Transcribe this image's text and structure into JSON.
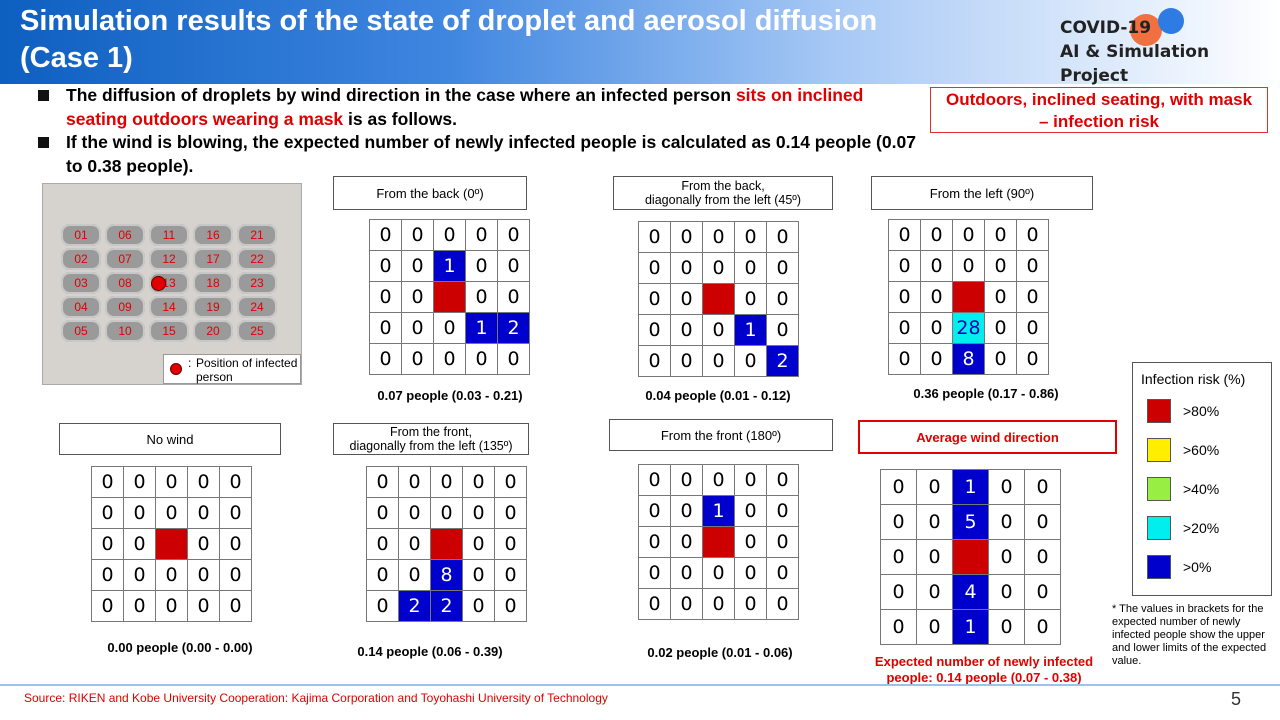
{
  "header": {
    "title_line1": "Simulation results of the state of droplet and aerosol diffusion",
    "title_line2": "(Case 1)",
    "logo_line1": "COVID-19",
    "logo_line2": "AI & Simulation Project"
  },
  "bullets": {
    "b1_part1": "The diffusion of droplets by wind direction in the case where an infected person ",
    "b1_red": "sits on inclined seating outdoors wearing a mask",
    "b1_part2": " is as follows.",
    "b2": "If the wind is blowing, the expected number of newly infected people is calculated as 0.14 people (0.07 to 0.38 people)."
  },
  "risk_box": {
    "line1": "Outdoors, inclined seating, with mask",
    "line2": "– infection risk"
  },
  "seat_labels": [
    [
      "01",
      "06",
      "11",
      "16",
      "21"
    ],
    [
      "02",
      "07",
      "12",
      "17",
      "22"
    ],
    [
      "03",
      "08",
      "13",
      "18",
      "23"
    ],
    [
      "04",
      "09",
      "14",
      "19",
      "24"
    ],
    [
      "05",
      "10",
      "15",
      "20",
      "25"
    ]
  ],
  "infected_legend": {
    "colon": ":",
    "text": "Position of infected person"
  },
  "panels": {
    "back": {
      "label": "From the back (0º)",
      "caption": "0.07 people (0.03 - 0.21)"
    },
    "back45": {
      "label_line1": "From the back,",
      "label_line2": "diagonally from the left (45º)",
      "caption": "0.04 people (0.01 - 0.12)"
    },
    "left90": {
      "label": "From the left (90º)",
      "caption": "0.36 people (0.17 - 0.86)"
    },
    "nowind": {
      "label": "No wind",
      "caption": "0.00 people (0.00 - 0.00)"
    },
    "front135": {
      "label_line1": "From the front,",
      "label_line2": "diagonally from the left (135º)",
      "caption": "0.14 people (0.06 - 0.39)"
    },
    "front180": {
      "label": "From the front (180º)",
      "caption": "0.02 people (0.01 - 0.06)"
    },
    "average": {
      "label": "Average wind direction",
      "caption_line1": "Expected number of newly infected",
      "caption_line2": "people: 0.14 people (0.07 - 0.38)"
    }
  },
  "grids": {
    "back": [
      [
        "0",
        "0",
        "0",
        "0",
        "0"
      ],
      [
        "0",
        "0",
        "1",
        "0",
        "0"
      ],
      [
        "0",
        "0",
        "",
        "0",
        "0"
      ],
      [
        "0",
        "0",
        "0",
        "1",
        "2"
      ],
      [
        "0",
        "0",
        "0",
        "0",
        "0"
      ]
    ],
    "back45": [
      [
        "0",
        "0",
        "0",
        "0",
        "0"
      ],
      [
        "0",
        "0",
        "0",
        "0",
        "0"
      ],
      [
        "0",
        "0",
        "",
        "0",
        "0"
      ],
      [
        "0",
        "0",
        "0",
        "1",
        "0"
      ],
      [
        "0",
        "0",
        "0",
        "0",
        "2"
      ]
    ],
    "left90": [
      [
        "0",
        "0",
        "0",
        "0",
        "0"
      ],
      [
        "0",
        "0",
        "0",
        "0",
        "0"
      ],
      [
        "0",
        "0",
        "",
        "0",
        "0"
      ],
      [
        "0",
        "0",
        "28",
        "0",
        "0"
      ],
      [
        "0",
        "0",
        "8",
        "0",
        "0"
      ]
    ],
    "nowind": [
      [
        "0",
        "0",
        "0",
        "0",
        "0"
      ],
      [
        "0",
        "0",
        "0",
        "0",
        "0"
      ],
      [
        "0",
        "0",
        "",
        "0",
        "0"
      ],
      [
        "0",
        "0",
        "0",
        "0",
        "0"
      ],
      [
        "0",
        "0",
        "0",
        "0",
        "0"
      ]
    ],
    "front135": [
      [
        "0",
        "0",
        "0",
        "0",
        "0"
      ],
      [
        "0",
        "0",
        "0",
        "0",
        "0"
      ],
      [
        "0",
        "0",
        "",
        "0",
        "0"
      ],
      [
        "0",
        "0",
        "8",
        "0",
        "0"
      ],
      [
        "0",
        "2",
        "2",
        "0",
        "0"
      ]
    ],
    "front180": [
      [
        "0",
        "0",
        "0",
        "0",
        "0"
      ],
      [
        "0",
        "0",
        "1",
        "0",
        "0"
      ],
      [
        "0",
        "0",
        "",
        "0",
        "0"
      ],
      [
        "0",
        "0",
        "0",
        "0",
        "0"
      ],
      [
        "0",
        "0",
        "0",
        "0",
        "0"
      ]
    ],
    "average": [
      [
        "0",
        "0",
        "1",
        "0",
        "0"
      ],
      [
        "0",
        "0",
        "5",
        "0",
        "0"
      ],
      [
        "0",
        "0",
        "",
        "0",
        "0"
      ],
      [
        "0",
        "0",
        "4",
        "0",
        "0"
      ],
      [
        "0",
        "0",
        "1",
        "0",
        "0"
      ]
    ]
  },
  "risk_legend": {
    "title": "Infection risk (%)",
    "items": [
      {
        "label": ">80%",
        "color": "#cc0000"
      },
      {
        "label": ">60%",
        "color": "#ffee00"
      },
      {
        "label": ">40%",
        "color": "#99ee44"
      },
      {
        "label": ">20%",
        "color": "#00eeee"
      },
      {
        "label": ">0%",
        "color": "#0000cc"
      }
    ]
  },
  "footnote": "* The values in brackets for the expected number of newly infected people show the upper and lower limits of the expected value.",
  "source": "Source: RIKEN and Kobe University Cooperation: Kajima Corporation and Toyohashi University of Technology",
  "page_number": "5"
}
